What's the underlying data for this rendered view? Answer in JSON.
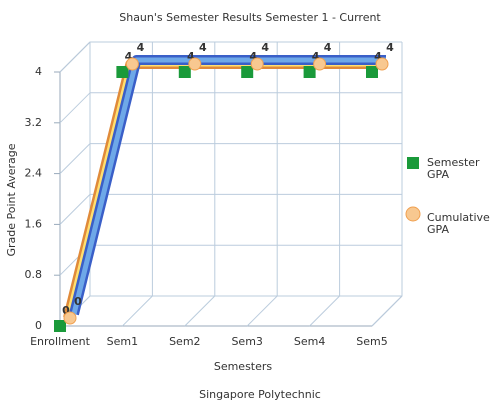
{
  "chart_data": {
    "type": "line",
    "title": "Shaun's Semester Results Semester 1 - Current",
    "subtitle": "Singapore Polytechnic",
    "x_label": "Semesters",
    "y_label": "Grade Point Average",
    "categories": [
      "Enrollment",
      "Sem1",
      "Sem2",
      "Sem3",
      "Sem4",
      "Sem5"
    ],
    "series": [
      {
        "name": "Semester GPA",
        "color": "#1a9a3a",
        "values": [
          0,
          4,
          4,
          4,
          4,
          4
        ]
      },
      {
        "name": "Cumulative GPA",
        "color": "#f0a050",
        "values": [
          0,
          4,
          4,
          4,
          4,
          4
        ]
      }
    ],
    "ylim": [
      0,
      4
    ],
    "yticks": [
      0,
      0.8,
      1.6,
      2.4,
      3.2,
      4
    ],
    "grid": true,
    "legend": "right"
  }
}
